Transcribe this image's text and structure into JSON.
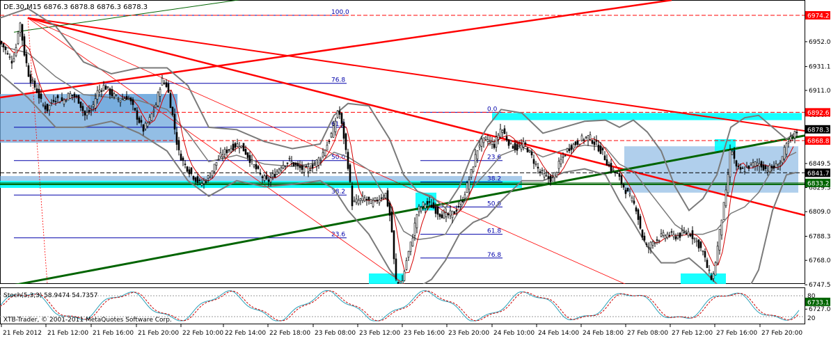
{
  "header": {
    "symbol_info": "DE.30,M15  6876.3 6878.8 6876.3 6878.3"
  },
  "footer": {
    "copyright": "XTB-Trader, © 2001-2011 MetaQuotes Software Corp."
  },
  "indicator": {
    "title": "Stoch(5,3,3) 58.9474 54.7357",
    "levels": [
      "80",
      "20"
    ]
  },
  "colors": {
    "price_up": "#000000",
    "bollinger": "#7a7a7a",
    "ma": "#d40000",
    "trend_red": "#ff0000",
    "trend_green": "#006400",
    "zone_blue": "#6fa8dc",
    "zone_cyan": "#00ffff",
    "fib": "#0000aa",
    "stoch_main": "#2aa1b8",
    "stoch_signal": "#cc0000"
  },
  "chart_data": {
    "type": "candlestick",
    "title": "",
    "xlabel": "",
    "ylabel": "",
    "ylim": [
      6731,
      6987
    ],
    "y_ticks": [
      "6952.0",
      "6931.1",
      "6911.0",
      "6890.4",
      "6870.3",
      "6849.5",
      "6829.3",
      "6809.0",
      "6788.3",
      "6768.0",
      "6747.5",
      "6727.0"
    ],
    "y_tick_values": [
      6952.0,
      6931.1,
      6911.0,
      6890.4,
      6870.3,
      6849.5,
      6829.3,
      6809.0,
      6788.3,
      6768.0,
      6747.5,
      6727.0
    ],
    "x_ticks": [
      "21 Feb 2012",
      "21 Feb 12:00",
      "21 Feb 16:00",
      "21 Feb 20:00",
      "22 Feb 10:00",
      "22 Feb 14:00",
      "22 Feb 18:00",
      "23 Feb 08:00",
      "23 Feb 12:00",
      "23 Feb 16:00",
      "23 Feb 20:00",
      "24 Feb 10:00",
      "24 Feb 14:00",
      "24 Feb 18:00",
      "27 Feb 08:00",
      "27 Feb 12:00",
      "27 Feb 16:00",
      "27 Feb 20:00"
    ],
    "price_tags": [
      {
        "value": 6974.2,
        "label": "6974.2",
        "color": "#ff0000"
      },
      {
        "value": 6892.6,
        "label": "6892.6",
        "color": "#ff0000"
      },
      {
        "value": 6878.3,
        "label": "6878.3",
        "color": "#000000"
      },
      {
        "value": 6868.8,
        "label": "6868.8",
        "color": "#ff0000"
      },
      {
        "value": 6841.7,
        "label": "6841.7",
        "color": "#000000"
      },
      {
        "value": 6833.2,
        "label": "6833.2",
        "color": "#006400"
      },
      {
        "value": 6733.1,
        "label": "6733.1",
        "color": "#006400"
      }
    ],
    "close_path": [
      [
        0,
        6952
      ],
      [
        6,
        6947
      ],
      [
        12,
        6940
      ],
      [
        18,
        6935
      ],
      [
        24,
        6950
      ],
      [
        28,
        6972
      ],
      [
        34,
        6945
      ],
      [
        42,
        6922
      ],
      [
        52,
        6912
      ],
      [
        60,
        6900
      ],
      [
        68,
        6895
      ],
      [
        78,
        6905
      ],
      [
        90,
        6902
      ],
      [
        100,
        6908
      ],
      [
        112,
        6904
      ],
      [
        122,
        6890
      ],
      [
        132,
        6895
      ],
      [
        140,
        6910
      ],
      [
        150,
        6915
      ],
      [
        160,
        6908
      ],
      [
        172,
        6903
      ],
      [
        184,
        6906
      ],
      [
        196,
        6890
      ],
      [
        206,
        6878
      ],
      [
        214,
        6885
      ],
      [
        224,
        6899
      ],
      [
        232,
        6920
      ],
      [
        240,
        6915
      ],
      [
        248,
        6890
      ],
      [
        256,
        6860
      ],
      [
        264,
        6850
      ],
      [
        276,
        6840
      ],
      [
        288,
        6832
      ],
      [
        300,
        6838
      ],
      [
        310,
        6850
      ],
      [
        320,
        6858
      ],
      [
        332,
        6863
      ],
      [
        344,
        6866
      ],
      [
        354,
        6858
      ],
      [
        364,
        6848
      ],
      [
        374,
        6840
      ],
      [
        384,
        6834
      ],
      [
        394,
        6840
      ],
      [
        404,
        6848
      ],
      [
        416,
        6852
      ],
      [
        428,
        6846
      ],
      [
        440,
        6844
      ],
      [
        452,
        6849
      ],
      [
        462,
        6856
      ],
      [
        472,
        6868
      ],
      [
        480,
        6880
      ],
      [
        486,
        6897
      ],
      [
        494,
        6872
      ],
      [
        500,
        6848
      ],
      [
        506,
        6816
      ],
      [
        514,
        6818
      ],
      [
        524,
        6820
      ],
      [
        534,
        6816
      ],
      [
        544,
        6820
      ],
      [
        554,
        6824
      ],
      [
        562,
        6800
      ],
      [
        568,
        6752
      ],
      [
        576,
        6745
      ],
      [
        584,
        6768
      ],
      [
        592,
        6786
      ],
      [
        600,
        6810
      ],
      [
        610,
        6816
      ],
      [
        620,
        6814
      ],
      [
        630,
        6808
      ],
      [
        640,
        6805
      ],
      [
        652,
        6808
      ],
      [
        664,
        6818
      ],
      [
        676,
        6840
      ],
      [
        688,
        6866
      ],
      [
        700,
        6870
      ],
      [
        710,
        6865
      ],
      [
        720,
        6880
      ],
      [
        730,
        6868
      ],
      [
        742,
        6862
      ],
      [
        754,
        6866
      ],
      [
        764,
        6855
      ],
      [
        774,
        6844
      ],
      [
        784,
        6838
      ],
      [
        794,
        6836
      ],
      [
        804,
        6850
      ],
      [
        816,
        6862
      ],
      [
        826,
        6866
      ],
      [
        836,
        6870
      ],
      [
        846,
        6872
      ],
      [
        856,
        6866
      ],
      [
        866,
        6858
      ],
      [
        876,
        6846
      ],
      [
        886,
        6841
      ],
      [
        896,
        6830
      ],
      [
        906,
        6820
      ],
      [
        914,
        6812
      ],
      [
        922,
        6790
      ],
      [
        930,
        6778
      ],
      [
        940,
        6785
      ],
      [
        950,
        6788
      ],
      [
        960,
        6790
      ],
      [
        970,
        6788
      ],
      [
        980,
        6790
      ],
      [
        990,
        6792
      ],
      [
        1000,
        6785
      ],
      [
        1010,
        6775
      ],
      [
        1018,
        6758
      ],
      [
        1024,
        6752
      ],
      [
        1030,
        6775
      ],
      [
        1036,
        6800
      ],
      [
        1044,
        6828
      ],
      [
        1050,
        6865
      ],
      [
        1058,
        6845
      ],
      [
        1068,
        6844
      ],
      [
        1078,
        6848
      ],
      [
        1090,
        6850
      ],
      [
        1100,
        6845
      ],
      [
        1110,
        6846
      ],
      [
        1120,
        6848
      ],
      [
        1128,
        6862
      ],
      [
        1136,
        6870
      ],
      [
        1144,
        6876
      ]
    ],
    "bollinger_upper": [
      [
        0,
        6972
      ],
      [
        40,
        6980
      ],
      [
        80,
        6965
      ],
      [
        120,
        6935
      ],
      [
        160,
        6925
      ],
      [
        200,
        6930
      ],
      [
        240,
        6930
      ],
      [
        270,
        6915
      ],
      [
        300,
        6880
      ],
      [
        340,
        6878
      ],
      [
        380,
        6868
      ],
      [
        420,
        6862
      ],
      [
        460,
        6866
      ],
      [
        480,
        6890
      ],
      [
        500,
        6900
      ],
      [
        530,
        6898
      ],
      [
        560,
        6870
      ],
      [
        580,
        6840
      ],
      [
        600,
        6826
      ],
      [
        620,
        6822
      ],
      [
        640,
        6812
      ],
      [
        660,
        6830
      ],
      [
        680,
        6860
      ],
      [
        700,
        6880
      ],
      [
        720,
        6895
      ],
      [
        750,
        6892
      ],
      [
        780,
        6875
      ],
      [
        810,
        6880
      ],
      [
        840,
        6885
      ],
      [
        870,
        6886
      ],
      [
        890,
        6880
      ],
      [
        910,
        6886
      ],
      [
        930,
        6876
      ],
      [
        950,
        6860
      ],
      [
        970,
        6830
      ],
      [
        990,
        6810
      ],
      [
        1010,
        6820
      ],
      [
        1030,
        6840
      ],
      [
        1050,
        6880
      ],
      [
        1070,
        6888
      ],
      [
        1090,
        6890
      ],
      [
        1110,
        6880
      ],
      [
        1130,
        6870
      ],
      [
        1144,
        6876
      ]
    ],
    "bollinger_lower": [
      [
        0,
        6925
      ],
      [
        40,
        6905
      ],
      [
        80,
        6880
      ],
      [
        120,
        6880
      ],
      [
        160,
        6885
      ],
      [
        200,
        6875
      ],
      [
        240,
        6860
      ],
      [
        270,
        6835
      ],
      [
        300,
        6822
      ],
      [
        340,
        6835
      ],
      [
        380,
        6830
      ],
      [
        420,
        6832
      ],
      [
        460,
        6835
      ],
      [
        480,
        6828
      ],
      [
        500,
        6810
      ],
      [
        530,
        6790
      ],
      [
        560,
        6760
      ],
      [
        580,
        6745
      ],
      [
        600,
        6745
      ],
      [
        620,
        6752
      ],
      [
        640,
        6768
      ],
      [
        660,
        6790
      ],
      [
        680,
        6800
      ],
      [
        700,
        6805
      ],
      [
        720,
        6818
      ],
      [
        750,
        6835
      ],
      [
        780,
        6835
      ],
      [
        810,
        6842
      ],
      [
        840,
        6845
      ],
      [
        870,
        6840
      ],
      [
        890,
        6818
      ],
      [
        910,
        6800
      ],
      [
        930,
        6780
      ],
      [
        950,
        6766
      ],
      [
        970,
        6766
      ],
      [
        990,
        6770
      ],
      [
        1010,
        6760
      ],
      [
        1030,
        6748
      ],
      [
        1050,
        6735
      ],
      [
        1070,
        6738
      ],
      [
        1090,
        6760
      ],
      [
        1110,
        6810
      ],
      [
        1130,
        6840
      ],
      [
        1144,
        6842
      ]
    ],
    "fib_labels": [
      {
        "label": "100.0",
        "value": 6974.2
      },
      {
        "label": "76.8",
        "value": 6917
      },
      {
        "label": "61.8",
        "value": 6880
      },
      {
        "label": "50.0",
        "value": 6852
      },
      {
        "label": "38.2",
        "value": 6823
      },
      {
        "label": "23.6",
        "value": 6787
      },
      {
        "label": "0.0",
        "value": 6733.1
      },
      {
        "label": "0.0",
        "value": 6892.6
      },
      {
        "label": "23.6",
        "value": 6852
      },
      {
        "label": "38.2",
        "value": 6834
      },
      {
        "label": "50.0",
        "value": 6813
      },
      {
        "label": "61.8",
        "value": 6790
      },
      {
        "label": "76.8",
        "value": 6770
      },
      {
        "label": "100.0",
        "value": 6733.1
      }
    ]
  }
}
